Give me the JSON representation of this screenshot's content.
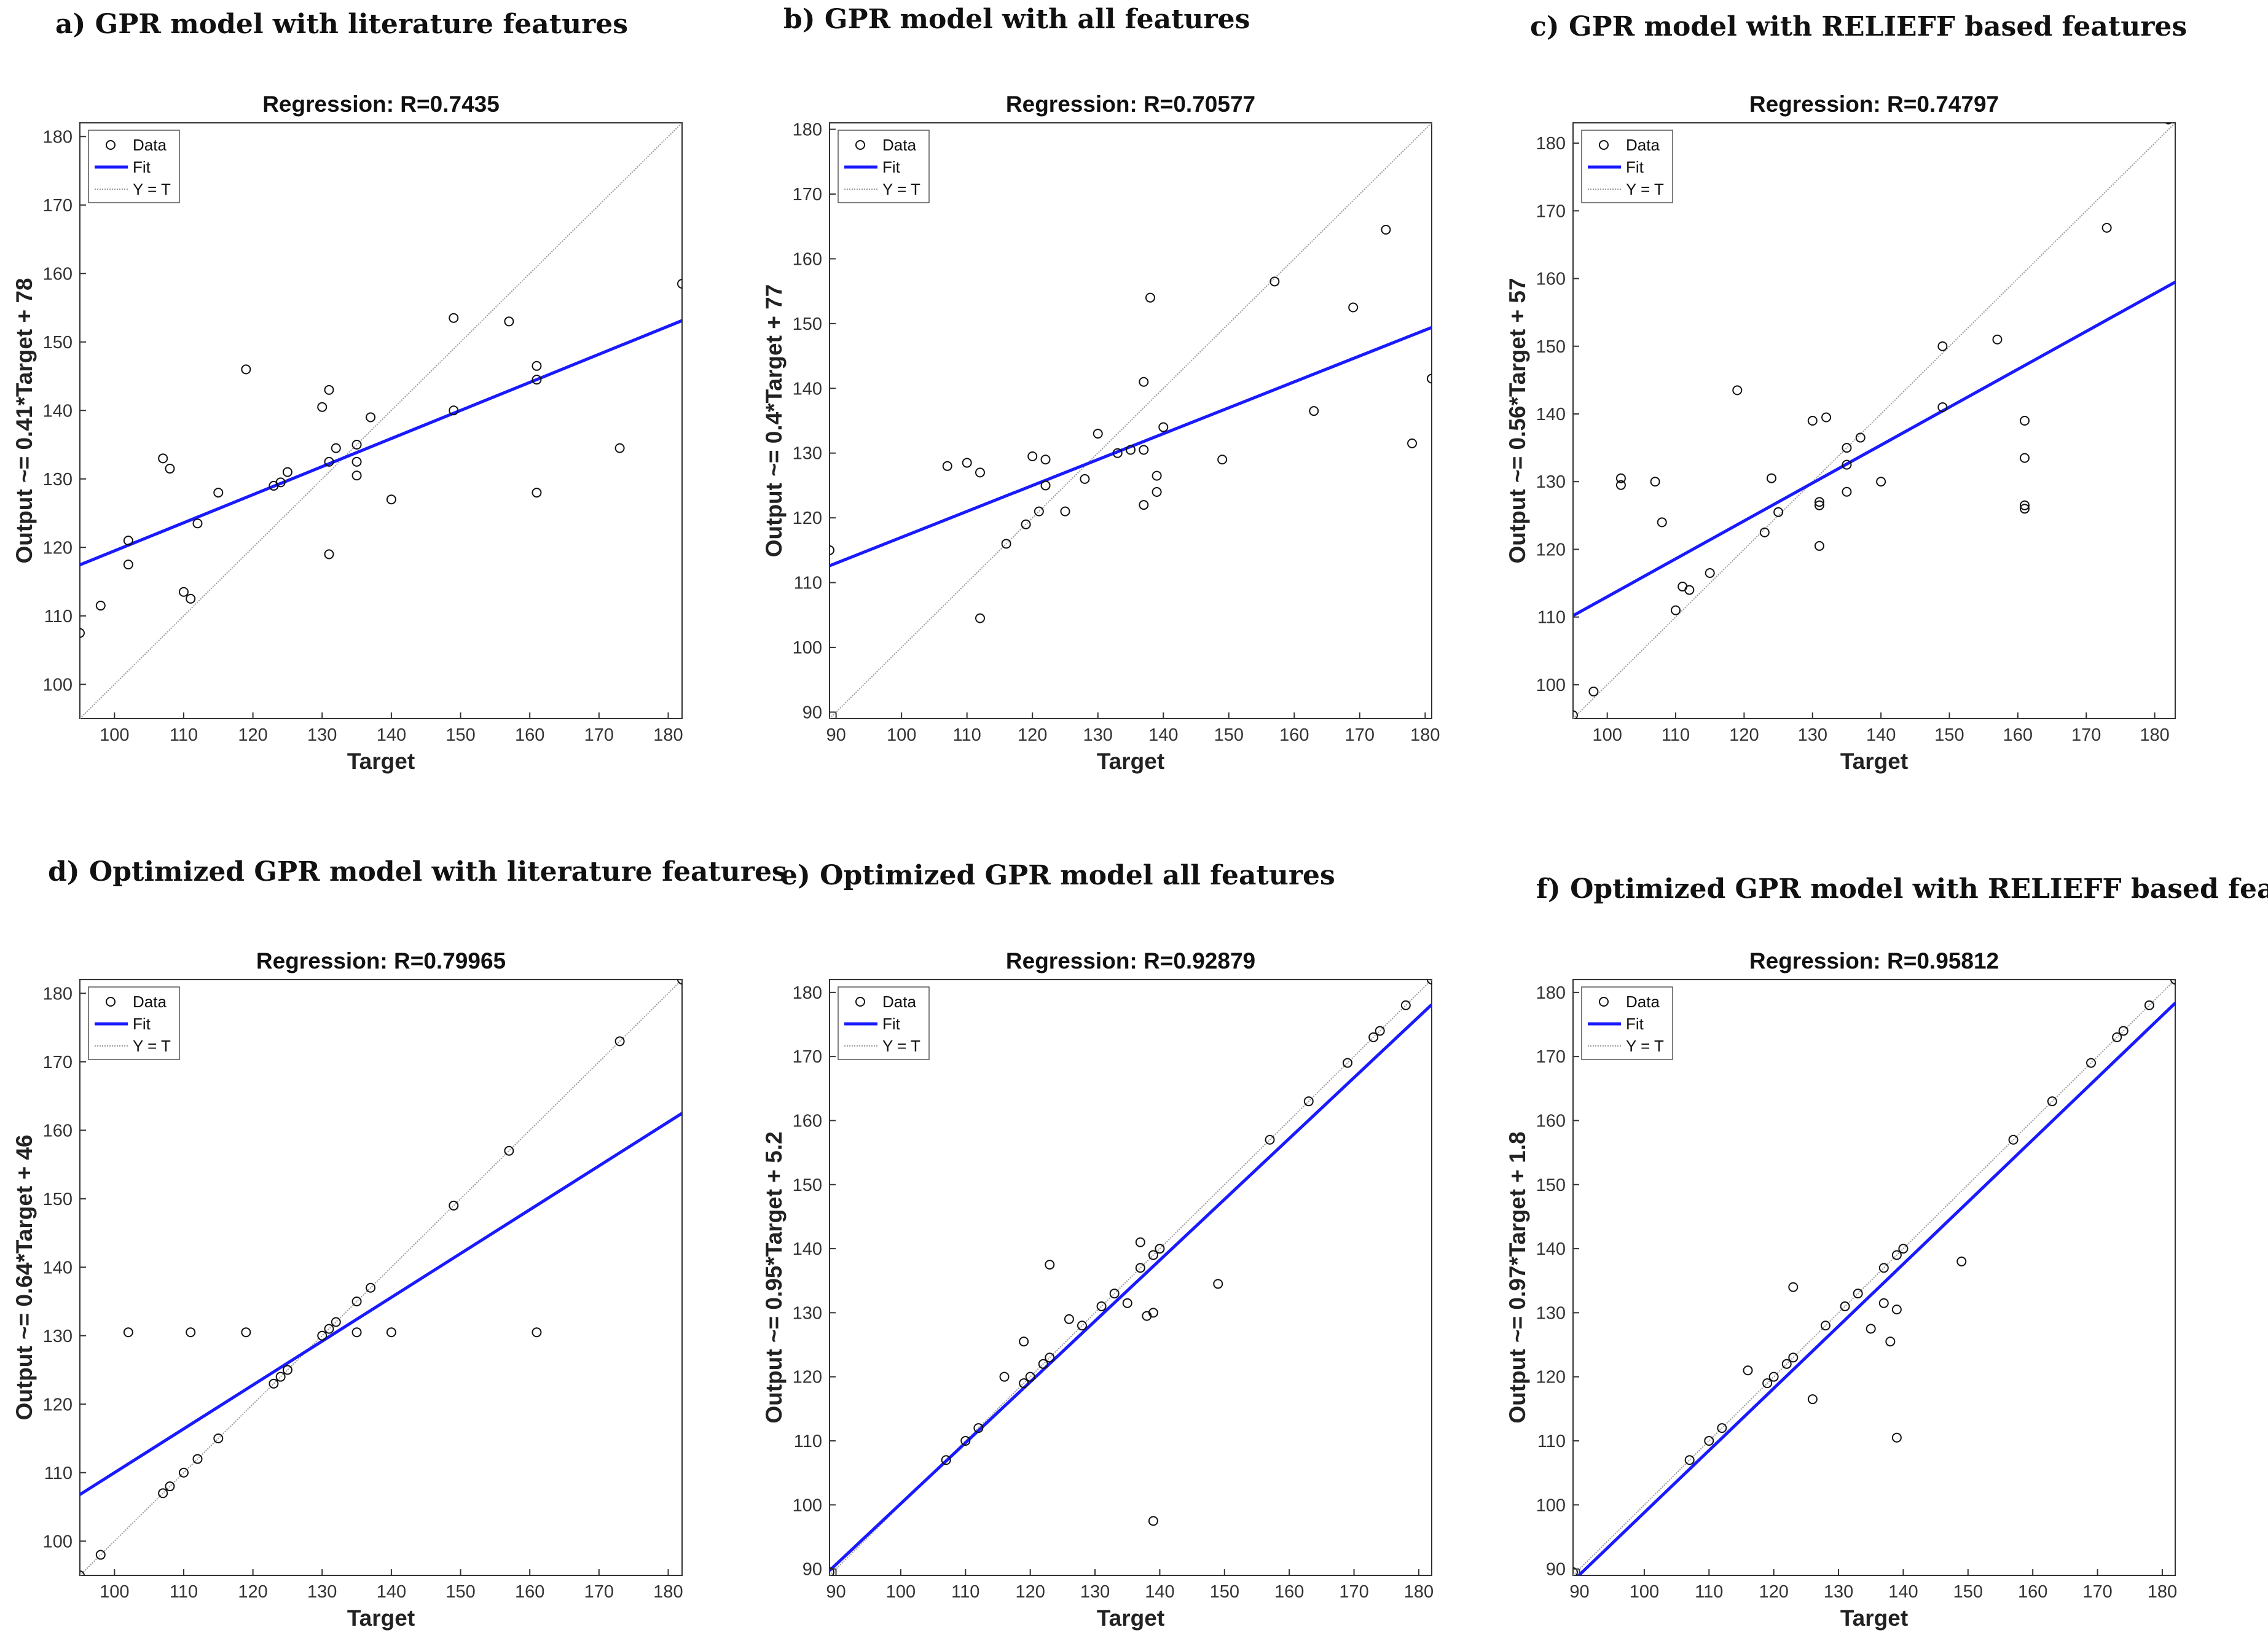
{
  "panels": [
    {
      "title_prefix": "a)",
      "title": "GPR model with literature features"
    },
    {
      "title_prefix": "b)",
      "title": "GPR model with all features"
    },
    {
      "title_prefix": "c)",
      "title": "GPR model with RELIEFF based features"
    },
    {
      "title_prefix": "d)",
      "title": "Optimized GPR model with literature features"
    },
    {
      "title_prefix": "e)",
      "title": "Optimized GPR model all features"
    },
    {
      "title_prefix": "f)",
      "title": "Optimized GPR model with RELIEFF based features"
    }
  ],
  "legend": {
    "data": "Data",
    "fit": "Fit",
    "identity": "Y = T"
  },
  "colors": {
    "fit": "#1a1aff",
    "identity": "#999999",
    "points": "#111111"
  },
  "chart_data": [
    {
      "type": "scatter",
      "title": "Regression: R=0.7435",
      "xlabel": "Target",
      "ylabel": "Output ~= 0.41*Target + 78",
      "xlim": [
        95,
        182
      ],
      "ylim": [
        95,
        182
      ],
      "xticks": [
        100,
        110,
        120,
        130,
        140,
        150,
        160,
        170,
        180
      ],
      "yticks": [
        100,
        110,
        120,
        130,
        140,
        150,
        160,
        170,
        180
      ],
      "fit": {
        "slope": 0.41,
        "intercept": 78.5
      },
      "legend_position": "top-left",
      "points": [
        [
          95,
          107.5
        ],
        [
          98,
          111.5
        ],
        [
          102,
          117.5
        ],
        [
          102,
          121
        ],
        [
          107,
          133
        ],
        [
          108,
          131.5
        ],
        [
          110,
          113.5
        ],
        [
          111,
          112.5
        ],
        [
          112,
          123.5
        ],
        [
          115,
          128
        ],
        [
          119,
          146
        ],
        [
          123,
          129
        ],
        [
          124,
          129.5
        ],
        [
          125,
          131
        ],
        [
          130,
          140.5
        ],
        [
          131,
          119
        ],
        [
          131,
          143
        ],
        [
          131,
          132.5
        ],
        [
          132,
          134.5
        ],
        [
          135,
          135
        ],
        [
          135,
          132.5
        ],
        [
          135,
          130.5
        ],
        [
          137,
          139
        ],
        [
          140,
          127
        ],
        [
          149,
          153.5
        ],
        [
          149,
          140
        ],
        [
          157,
          153
        ],
        [
          161,
          146.5
        ],
        [
          161,
          144.5
        ],
        [
          161,
          128
        ],
        [
          173,
          134.5
        ],
        [
          182,
          158.5
        ]
      ]
    },
    {
      "type": "scatter",
      "title": "Regression: R=0.70577",
      "xlabel": "Target",
      "ylabel": "Output ~= 0.4*Target + 77",
      "xlim": [
        89,
        181
      ],
      "ylim": [
        89,
        181
      ],
      "xticks": [
        90,
        100,
        110,
        120,
        130,
        140,
        150,
        160,
        170,
        180
      ],
      "yticks": [
        90,
        100,
        110,
        120,
        130,
        140,
        150,
        160,
        170,
        180
      ],
      "fit": {
        "slope": 0.4,
        "intercept": 77
      },
      "legend_position": "top-left",
      "points": [
        [
          89,
          115
        ],
        [
          107,
          128
        ],
        [
          110,
          128.5
        ],
        [
          112,
          127
        ],
        [
          112,
          104.5
        ],
        [
          116,
          116
        ],
        [
          119,
          119
        ],
        [
          120,
          129.5
        ],
        [
          121,
          121
        ],
        [
          122,
          125
        ],
        [
          122,
          129
        ],
        [
          125,
          121
        ],
        [
          128,
          126
        ],
        [
          130,
          133
        ],
        [
          133,
          130
        ],
        [
          135,
          130.5
        ],
        [
          137,
          141
        ],
        [
          137,
          130.5
        ],
        [
          137,
          122
        ],
        [
          138,
          154
        ],
        [
          139,
          126.5
        ],
        [
          139,
          124
        ],
        [
          140,
          134
        ],
        [
          149,
          129
        ],
        [
          157,
          156.5
        ],
        [
          163,
          136.5
        ],
        [
          169,
          152.5
        ],
        [
          174,
          164.5
        ],
        [
          178,
          131.5
        ],
        [
          181,
          141.5
        ]
      ]
    },
    {
      "type": "scatter",
      "title": "Regression: R=0.74797",
      "xlabel": "Target",
      "ylabel": "Output ~= 0.56*Target + 57",
      "xlim": [
        95,
        183
      ],
      "ylim": [
        95,
        183
      ],
      "xticks": [
        100,
        110,
        120,
        130,
        140,
        150,
        160,
        170,
        180
      ],
      "yticks": [
        100,
        110,
        120,
        130,
        140,
        150,
        160,
        170,
        180
      ],
      "fit": {
        "slope": 0.56,
        "intercept": 57
      },
      "legend_position": "top-left",
      "points": [
        [
          95,
          95.5
        ],
        [
          98,
          99
        ],
        [
          102,
          130.5
        ],
        [
          102,
          129.5
        ],
        [
          107,
          130
        ],
        [
          108,
          124
        ],
        [
          110,
          111
        ],
        [
          111,
          114.5
        ],
        [
          112,
          114
        ],
        [
          115,
          116.5
        ],
        [
          119,
          143.5
        ],
        [
          123,
          122.5
        ],
        [
          124,
          130.5
        ],
        [
          125,
          125.5
        ],
        [
          130,
          139
        ],
        [
          131,
          127
        ],
        [
          131,
          126.5
        ],
        [
          131,
          120.5
        ],
        [
          132,
          139.5
        ],
        [
          135,
          135
        ],
        [
          135,
          132.5
        ],
        [
          135,
          128.5
        ],
        [
          137,
          136.5
        ],
        [
          140,
          130
        ],
        [
          149,
          150
        ],
        [
          149,
          141
        ],
        [
          157,
          151
        ],
        [
          161,
          139
        ],
        [
          161,
          133.5
        ],
        [
          161,
          126.5
        ],
        [
          161,
          126
        ],
        [
          173,
          167.5
        ],
        [
          182,
          183.5
        ]
      ]
    },
    {
      "type": "scatter",
      "title": "Regression: R=0.79965",
      "xlabel": "Target",
      "ylabel": "Output ~= 0.64*Target + 46",
      "xlim": [
        95,
        182
      ],
      "ylim": [
        95,
        182
      ],
      "xticks": [
        100,
        110,
        120,
        130,
        140,
        150,
        160,
        170,
        180
      ],
      "yticks": [
        100,
        110,
        120,
        130,
        140,
        150,
        160,
        170,
        180
      ],
      "fit": {
        "slope": 0.64,
        "intercept": 46
      },
      "legend_position": "top-left",
      "points": [
        [
          95,
          95
        ],
        [
          98,
          98
        ],
        [
          102,
          130.5
        ],
        [
          107,
          107
        ],
        [
          108,
          108
        ],
        [
          110,
          110
        ],
        [
          111,
          130.5
        ],
        [
          112,
          112
        ],
        [
          115,
          115
        ],
        [
          119,
          130.5
        ],
        [
          123,
          123
        ],
        [
          124,
          124
        ],
        [
          125,
          125
        ],
        [
          130,
          130
        ],
        [
          131,
          131
        ],
        [
          132,
          132
        ],
        [
          135,
          135
        ],
        [
          135,
          130.5
        ],
        [
          137,
          137
        ],
        [
          140,
          130.5
        ],
        [
          149,
          149
        ],
        [
          157,
          157
        ],
        [
          161,
          130.5
        ],
        [
          173,
          173
        ],
        [
          182,
          182
        ]
      ]
    },
    {
      "type": "scatter",
      "title": "Regression: R=0.92879",
      "xlabel": "Target",
      "ylabel": "Output ~= 0.95*Target + 5.2",
      "xlim": [
        89,
        182
      ],
      "ylim": [
        89,
        182
      ],
      "xticks": [
        90,
        100,
        110,
        120,
        130,
        140,
        150,
        160,
        170,
        180
      ],
      "yticks": [
        90,
        100,
        110,
        120,
        130,
        140,
        150,
        160,
        170,
        180
      ],
      "fit": {
        "slope": 0.95,
        "intercept": 5.2
      },
      "legend_position": "top-left",
      "points": [
        [
          89,
          89.5
        ],
        [
          107,
          107
        ],
        [
          110,
          110
        ],
        [
          112,
          112
        ],
        [
          116,
          120
        ],
        [
          119,
          119
        ],
        [
          119,
          125.5
        ],
        [
          120,
          120
        ],
        [
          122,
          122
        ],
        [
          123,
          123
        ],
        [
          123,
          137.5
        ],
        [
          126,
          129
        ],
        [
          128,
          128
        ],
        [
          131,
          131
        ],
        [
          133,
          133
        ],
        [
          135,
          131.5
        ],
        [
          137,
          137
        ],
        [
          137,
          141
        ],
        [
          138,
          129.5
        ],
        [
          139,
          130
        ],
        [
          139,
          139
        ],
        [
          139,
          97.5
        ],
        [
          140,
          140
        ],
        [
          149,
          134.5
        ],
        [
          157,
          157
        ],
        [
          163,
          163
        ],
        [
          169,
          169
        ],
        [
          173,
          173
        ],
        [
          174,
          174
        ],
        [
          178,
          178
        ],
        [
          182,
          182
        ]
      ]
    },
    {
      "type": "scatter",
      "title": "Regression: R=0.95812",
      "xlabel": "Target",
      "ylabel": "Output ~= 0.97*Target + 1.8",
      "xlim": [
        89,
        182
      ],
      "ylim": [
        89,
        182
      ],
      "xticks": [
        90,
        100,
        110,
        120,
        130,
        140,
        150,
        160,
        170,
        180
      ],
      "yticks": [
        90,
        100,
        110,
        120,
        130,
        140,
        150,
        160,
        170,
        180
      ],
      "fit": {
        "slope": 0.97,
        "intercept": 1.8
      },
      "legend_position": "top-left",
      "points": [
        [
          89,
          89.5
        ],
        [
          107,
          107
        ],
        [
          110,
          110
        ],
        [
          112,
          112
        ],
        [
          116,
          121
        ],
        [
          119,
          119
        ],
        [
          120,
          120
        ],
        [
          122,
          122
        ],
        [
          123,
          123
        ],
        [
          123,
          134
        ],
        [
          126,
          116.5
        ],
        [
          128,
          128
        ],
        [
          131,
          131
        ],
        [
          133,
          133
        ],
        [
          135,
          127.5
        ],
        [
          137,
          131.5
        ],
        [
          137,
          137
        ],
        [
          138,
          125.5
        ],
        [
          139,
          110.5
        ],
        [
          139,
          130.5
        ],
        [
          139,
          139
        ],
        [
          140,
          140
        ],
        [
          149,
          138
        ],
        [
          157,
          157
        ],
        [
          163,
          163
        ],
        [
          169,
          169
        ],
        [
          173,
          173
        ],
        [
          174,
          174
        ],
        [
          178,
          178
        ],
        [
          182,
          182
        ]
      ]
    }
  ]
}
